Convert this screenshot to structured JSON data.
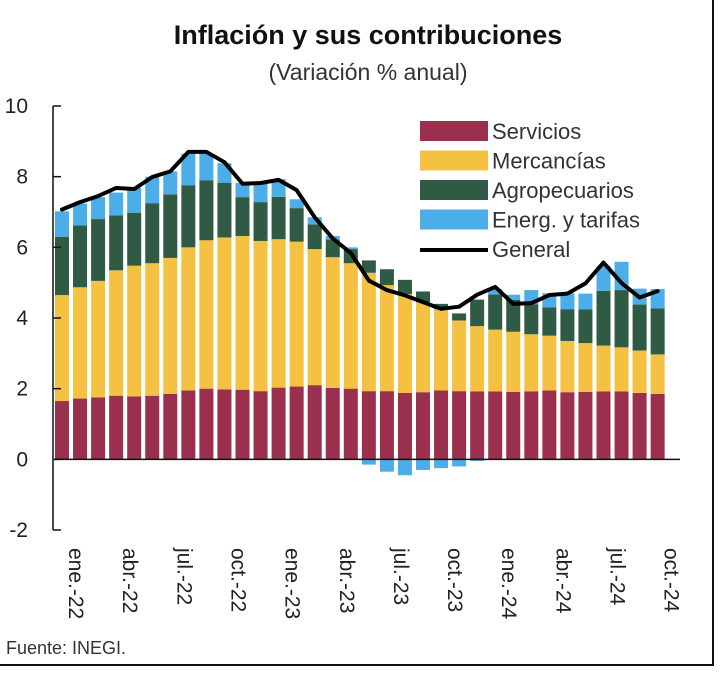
{
  "chart_data": {
    "type": "bar",
    "stacked": true,
    "title": "Inflación y sus contribuciones",
    "subtitle": "(Variación % anual)",
    "source": "Fuente: INEGI.",
    "ylim": [
      -2,
      10
    ],
    "yticks": [
      -2,
      0,
      2,
      4,
      6,
      8,
      10
    ],
    "categories": [
      "ene.-22",
      "feb.-22",
      "mar.-22",
      "abr.-22",
      "may.-22",
      "jun.-22",
      "jul.-22",
      "ago.-22",
      "sep.-22",
      "oct.-22",
      "nov.-22",
      "dic.-22",
      "ene.-23",
      "feb.-23",
      "mar.-23",
      "abr.-23",
      "may.-23",
      "jun.-23",
      "jul.-23",
      "ago.-23",
      "sep.-23",
      "oct.-23",
      "nov.-23",
      "dic.-23",
      "ene.-24",
      "feb.-24",
      "mar.-24",
      "abr.-24",
      "may.-24",
      "jun.-24",
      "jul.-24",
      "ago.-24",
      "sep.-24",
      "oct.-24"
    ],
    "xtick_labels": [
      "ene.-22",
      "abr.-22",
      "jul.-22",
      "oct.-22",
      "ene.-23",
      "abr.-23",
      "jul.-23",
      "oct.-23",
      "ene.-24",
      "abr.-24",
      "jul.-24",
      "oct.-24"
    ],
    "legend_position": "top-right",
    "series": [
      {
        "name": "Servicios",
        "color": "#9b2f4e",
        "values": [
          1.65,
          1.72,
          1.75,
          1.8,
          1.78,
          1.8,
          1.85,
          1.95,
          2.0,
          1.98,
          1.97,
          1.93,
          2.03,
          2.06,
          2.1,
          2.02,
          2.0,
          1.93,
          1.93,
          1.88,
          1.9,
          1.95,
          1.93,
          1.92,
          1.92,
          1.91,
          1.92,
          1.95,
          1.9,
          1.91,
          1.92,
          1.92,
          1.88,
          1.85
        ]
      },
      {
        "name": "Mercancías",
        "color": "#f4c142",
        "values": [
          3.0,
          3.15,
          3.3,
          3.55,
          3.7,
          3.75,
          3.85,
          4.05,
          4.2,
          4.3,
          4.35,
          4.25,
          4.2,
          4.1,
          3.85,
          3.7,
          3.55,
          3.35,
          3.0,
          2.8,
          2.55,
          2.3,
          2.0,
          1.85,
          1.75,
          1.7,
          1.62,
          1.55,
          1.45,
          1.38,
          1.3,
          1.25,
          1.2,
          1.12
        ]
      },
      {
        "name": "Agropecuarios",
        "color": "#2f5a44",
        "values": [
          1.65,
          1.75,
          1.75,
          1.55,
          1.5,
          1.7,
          1.8,
          1.75,
          1.7,
          1.55,
          1.1,
          1.1,
          1.2,
          0.95,
          0.7,
          0.5,
          0.4,
          0.35,
          0.45,
          0.4,
          0.3,
          0.15,
          0.2,
          0.75,
          1.0,
          0.9,
          0.85,
          0.8,
          0.9,
          0.95,
          1.55,
          1.62,
          1.3,
          1.3
        ]
      },
      {
        "name": "Energ. y tarifas",
        "color": "#4baee8",
        "values": [
          0.72,
          0.62,
          0.62,
          0.65,
          0.7,
          0.75,
          0.65,
          0.9,
          0.75,
          0.55,
          0.4,
          0.55,
          0.5,
          0.25,
          0.2,
          0.1,
          0.05,
          -0.15,
          -0.35,
          -0.45,
          -0.3,
          -0.25,
          -0.2,
          -0.05,
          0.15,
          0.15,
          0.4,
          0.4,
          0.45,
          0.45,
          0.7,
          0.8,
          0.45,
          0.55
        ]
      }
    ],
    "general": {
      "name": "General",
      "color": "#000000",
      "values": [
        7.07,
        7.28,
        7.45,
        7.68,
        7.65,
        7.99,
        8.15,
        8.7,
        8.7,
        8.41,
        7.8,
        7.82,
        7.91,
        7.62,
        6.85,
        6.25,
        5.84,
        5.06,
        4.79,
        4.64,
        4.45,
        4.26,
        4.32,
        4.66,
        4.88,
        4.4,
        4.42,
        4.65,
        4.69,
        4.98,
        5.57,
        4.99,
        4.58,
        4.76
      ]
    }
  }
}
